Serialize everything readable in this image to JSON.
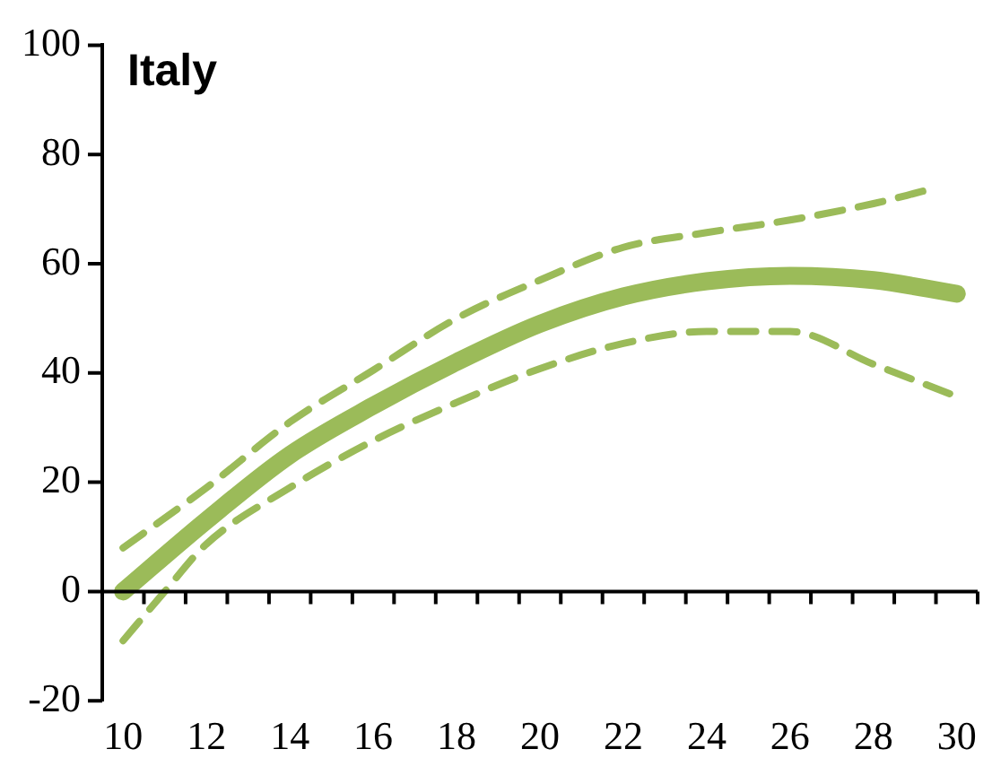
{
  "chart_data": {
    "type": "line",
    "title": "Italy",
    "xlim": [
      9.5,
      30.5
    ],
    "xticks": [
      10,
      12,
      14,
      16,
      18,
      20,
      22,
      24,
      26,
      28,
      30
    ],
    "ylim": [
      -20,
      100
    ],
    "yticks": [
      -20,
      0,
      20,
      40,
      60,
      80,
      100
    ],
    "grid": false,
    "ref_lines": [
      {
        "axis": "y",
        "value": 0,
        "color": "#000000",
        "line_style": "solid"
      }
    ],
    "legend": false,
    "marker": "none",
    "series": [
      {
        "color": "#9bbb59",
        "line_style": "solid",
        "x": [
          10,
          12,
          14,
          16,
          18,
          20,
          22,
          24,
          26,
          28,
          30
        ],
        "values": [
          0,
          13,
          25,
          34,
          42,
          49,
          54,
          56.8,
          57.8,
          57,
          54.5
        ]
      },
      {
        "color": "#9bbb59",
        "line_style": "dashed",
        "x": [
          10,
          12,
          14,
          16,
          18,
          20,
          22,
          24,
          26,
          28,
          29.2
        ],
        "values": [
          8,
          19,
          31,
          40.5,
          50,
          57,
          63,
          65.7,
          68,
          71,
          73.3
        ]
      },
      {
        "color": "#9bbb59",
        "line_style": "dashed",
        "x": [
          10,
          11,
          12,
          14,
          16,
          18,
          20,
          22,
          24,
          26,
          28,
          30
        ],
        "values": [
          -9,
          0,
          8.7,
          19,
          27.6,
          34.6,
          40.8,
          45.4,
          47.6,
          47.6,
          41.6,
          35.7
        ]
      }
    ]
  }
}
